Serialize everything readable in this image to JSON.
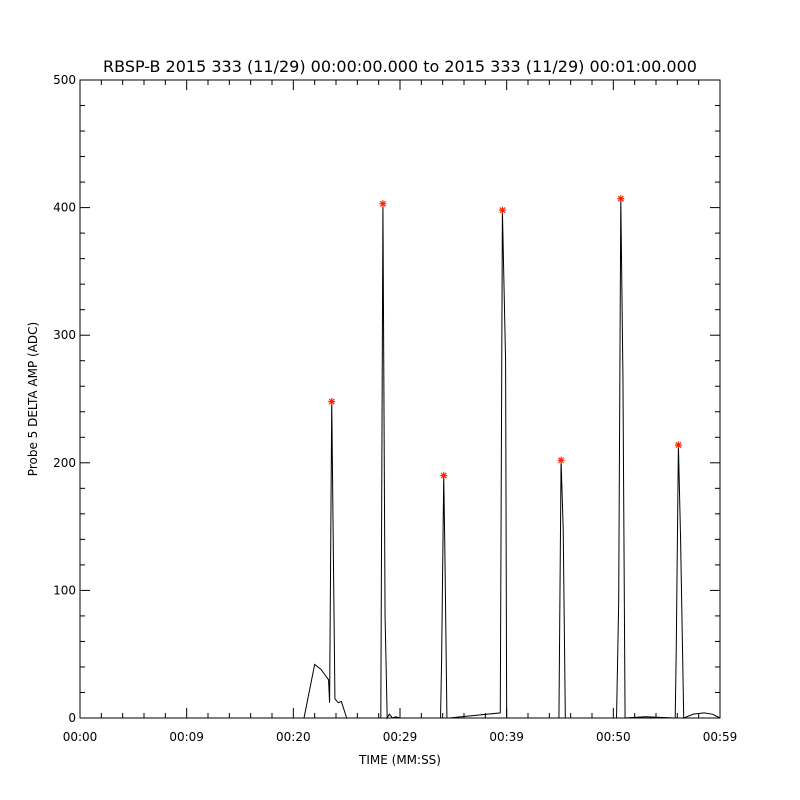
{
  "chart_data": {
    "type": "line",
    "title": "RBSP-B 2015 333 (11/29) 00:00:00.000 to 2015 333 (11/29) 00:01:00.000",
    "xlabel": "TIME (MM:SS)",
    "ylabel": "Probe 5 DELTA AMP (ADC)",
    "xlim": [
      0,
      60
    ],
    "ylim": [
      0,
      500
    ],
    "x_ticks": [
      {
        "value": 0,
        "label": "00:00"
      },
      {
        "value": 10,
        "label": "00:09"
      },
      {
        "value": 20,
        "label": "00:20"
      },
      {
        "value": 30,
        "label": "00:29"
      },
      {
        "value": 40,
        "label": "00:39"
      },
      {
        "value": 50,
        "label": "00:50"
      },
      {
        "value": 60,
        "label": "00:59"
      }
    ],
    "y_ticks": [
      0,
      100,
      200,
      300,
      400,
      500
    ],
    "series": [
      {
        "color": "#000000",
        "x": [
          0,
          21.0,
          22.0,
          22.6,
          23.3,
          23.4,
          23.6,
          23.9,
          24.2,
          24.5,
          25.0,
          28.2,
          28.4,
          28.6,
          28.8,
          29.0,
          29.3,
          29.6,
          30.0,
          31.5,
          33.8,
          33.9,
          34.1,
          34.2,
          34.4,
          34.6,
          39.4,
          39.6,
          39.9,
          40.0,
          40.3,
          40.6,
          44.9,
          45.1,
          45.3,
          45.5,
          50.3,
          50.5,
          50.7,
          50.9,
          51.1,
          53.0,
          55.8,
          55.9,
          56.1,
          56.3,
          56.6,
          57.5,
          58.5,
          59.3,
          60.0
        ],
        "y": [
          0,
          0,
          42,
          38,
          30,
          12,
          248,
          15,
          12,
          13,
          0,
          0,
          403,
          80,
          0,
          3,
          0,
          1,
          0,
          0,
          0,
          45,
          190,
          135,
          0,
          0,
          4,
          398,
          280,
          0,
          0,
          0,
          0,
          202,
          148,
          0,
          0,
          90,
          407,
          268,
          0,
          1,
          0,
          55,
          214,
          142,
          0,
          3,
          4,
          3,
          0
        ]
      }
    ],
    "markers": {
      "symbol": "*",
      "color": "#ff2200",
      "points": [
        {
          "x": 23.6,
          "y": 248
        },
        {
          "x": 28.4,
          "y": 403
        },
        {
          "x": 34.1,
          "y": 190
        },
        {
          "x": 39.6,
          "y": 398
        },
        {
          "x": 45.1,
          "y": 202
        },
        {
          "x": 50.7,
          "y": 407
        },
        {
          "x": 56.1,
          "y": 214
        }
      ]
    },
    "grid": false
  }
}
